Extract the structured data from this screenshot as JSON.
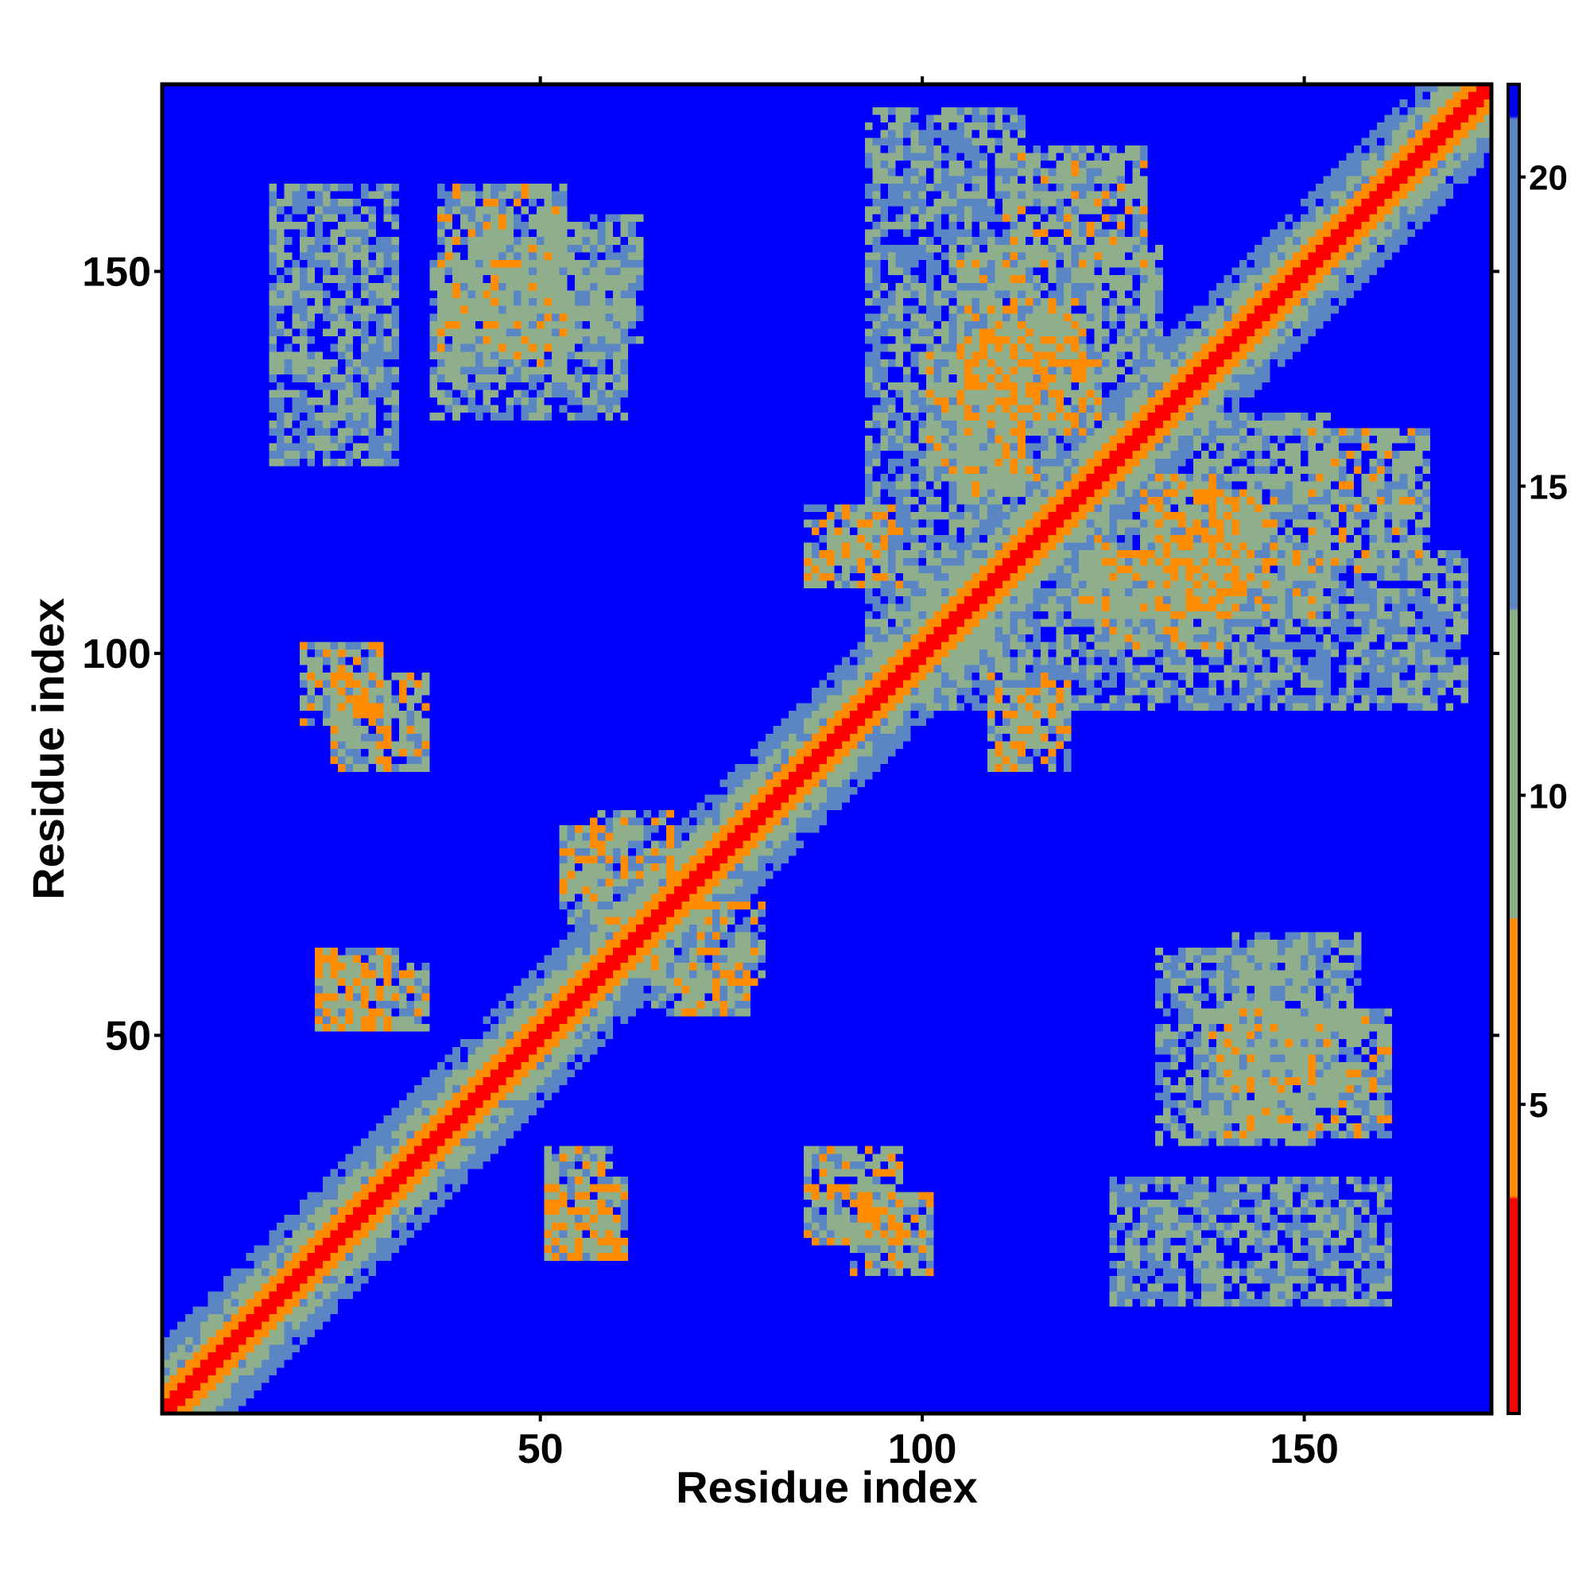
{
  "chart_data": {
    "type": "heatmap",
    "title": "",
    "xlabel": "Residue index",
    "ylabel": "Residue index",
    "n_residues": 174,
    "xlim": [
      1,
      174
    ],
    "ylim": [
      1,
      174
    ],
    "x_ticks": [
      50,
      100,
      150
    ],
    "y_ticks": [
      50,
      100,
      150
    ],
    "x_tick_labels": [
      "50",
      "100",
      "150"
    ],
    "y_tick_labels": [
      "50",
      "100",
      "150"
    ],
    "colorbar": {
      "range": [
        0,
        21.5
      ],
      "ticks": [
        5,
        10,
        15,
        20
      ],
      "tick_labels": [
        "5",
        "10",
        "15",
        "20"
      ],
      "colors": [
        "#ff0000",
        "#ff8c00",
        "#8fae8c",
        "#5b86c4",
        "#0000ff"
      ],
      "cutoffs": [
        3.5,
        8.0,
        13.0,
        21.0
      ]
    },
    "background_color": "#0000ff",
    "diagonal_value": 1.5,
    "contact_bands": [
      {
        "i": [
          18,
          28
        ],
        "j": [
          90,
          100
        ],
        "value": 7
      },
      {
        "i": [
          14,
          30
        ],
        "j": [
          124,
          160
        ],
        "value": 11
      },
      {
        "i": [
          36,
          52
        ],
        "j": [
          135,
          160
        ],
        "value": 8
      },
      {
        "i": [
          56,
          66
        ],
        "j": [
          70,
          78
        ],
        "value": 7
      },
      {
        "i": [
          52,
          60
        ],
        "j": [
          64,
          70
        ],
        "value": 8
      },
      {
        "i": [
          20,
          34
        ],
        "j": [
          50,
          58
        ],
        "value": 8
      },
      {
        "i": [
          50,
          60
        ],
        "j": [
          20,
          30
        ],
        "value": 7
      },
      {
        "i": [
          68,
          76
        ],
        "j": [
          52,
          58
        ],
        "value": 7
      },
      {
        "i": [
          84,
          96
        ],
        "j": [
          22,
          34
        ],
        "value": 7
      },
      {
        "i": [
          84,
          96
        ],
        "j": [
          108,
          118
        ],
        "value": 7
      },
      {
        "i": [
          104,
          112
        ],
        "j": [
          120,
          150
        ],
        "value": 8
      },
      {
        "i": [
          108,
          120
        ],
        "j": [
          130,
          145
        ],
        "value": 7
      },
      {
        "i": [
          122,
          138
        ],
        "j": [
          100,
          116
        ],
        "value": 8
      },
      {
        "i": [
          128,
          140
        ],
        "j": [
          104,
          122
        ],
        "value": 7
      },
      {
        "i": [
          135,
          152
        ],
        "j": [
          108,
          130
        ],
        "value": 9
      },
      {
        "i": [
          150,
          165
        ],
        "j": [
          110,
          128
        ],
        "value": 8
      },
      {
        "i": [
          140,
          156
        ],
        "j": [
          40,
          62
        ],
        "value": 10
      },
      {
        "i": [
          100,
          170
        ],
        "j": [
          92,
          112
        ],
        "value": 11
      },
      {
        "i": [
          130,
          150
        ],
        "j": [
          35,
          60
        ],
        "value": 11
      }
    ]
  }
}
